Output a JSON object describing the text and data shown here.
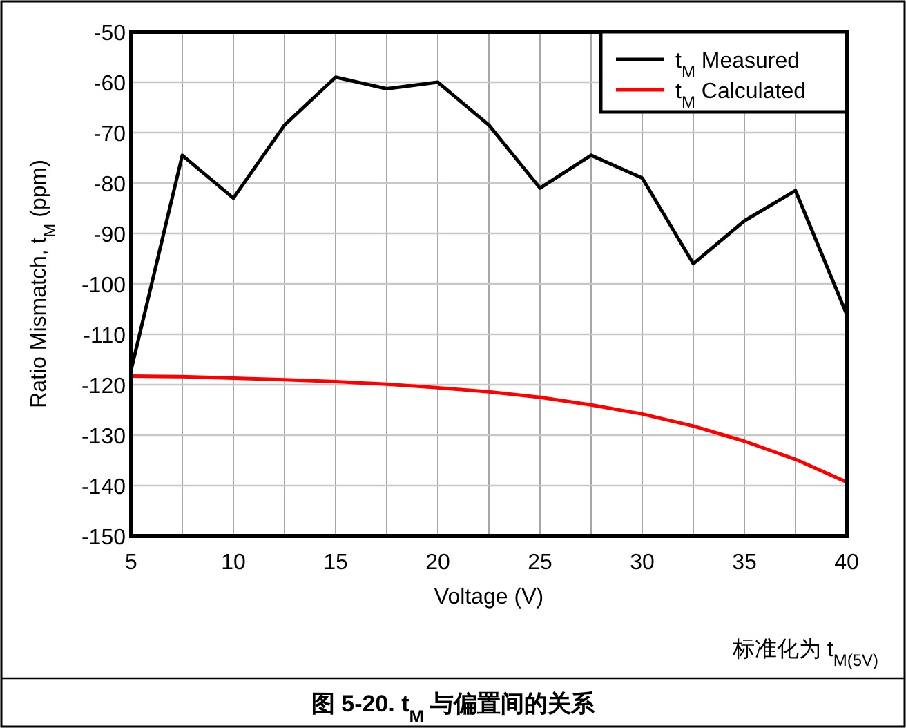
{
  "chart_data": {
    "type": "line",
    "title": "**图 5-20. t$_{M}$ 与偏置间的关系**",
    "xlabel": "Voltage (V)",
    "ylabel": "Ratio Mismatch, t$_{M}$ (ppm)",
    "annotations": [
      "标准化为 t$_{M(5V)}$"
    ],
    "x": [
      5,
      7.5,
      10,
      12.5,
      15,
      17.5,
      20,
      22.5,
      25,
      27.5,
      30,
      32.5,
      35,
      37.5,
      40
    ],
    "series": [
      {
        "name": "t$_{M}$ Measured",
        "color": "#000000",
        "values": [
          -117,
          -74.5,
          -83,
          -68.5,
          -59,
          -61.3,
          -60,
          -68.5,
          -81,
          -74.5,
          -79,
          -96,
          -87.5,
          -81.5,
          -106
        ]
      },
      {
        "name": "t$_{M}$ Calculated",
        "color": "#ff0000",
        "values": [
          -118.3,
          -118.4,
          -118.7,
          -119,
          -119.4,
          -119.9,
          -120.6,
          -121.4,
          -122.5,
          -124,
          -125.8,
          -128.2,
          -131.2,
          -134.8,
          -139.3
        ]
      }
    ],
    "xlim": [
      5,
      40
    ],
    "ylim": [
      -150,
      -50
    ],
    "xticks": [
      5,
      {
        "value": 7.5,
        "label": null
      },
      10,
      {
        "value": 12.5,
        "label": null
      },
      15,
      {
        "value": 17.5,
        "label": null
      },
      20,
      {
        "value": 22.5,
        "label": null
      },
      25,
      {
        "value": 27.5,
        "label": null
      },
      30,
      {
        "value": 32.5,
        "label": null
      },
      35,
      {
        "value": 37.5,
        "label": null
      },
      40
    ],
    "yticks": [
      -150,
      -140,
      -130,
      -120,
      -110,
      -100,
      -90,
      -80,
      -70,
      -60,
      -50
    ],
    "grid": true,
    "legend": "top right",
    "marker": "none",
    "line_style": "solid"
  }
}
